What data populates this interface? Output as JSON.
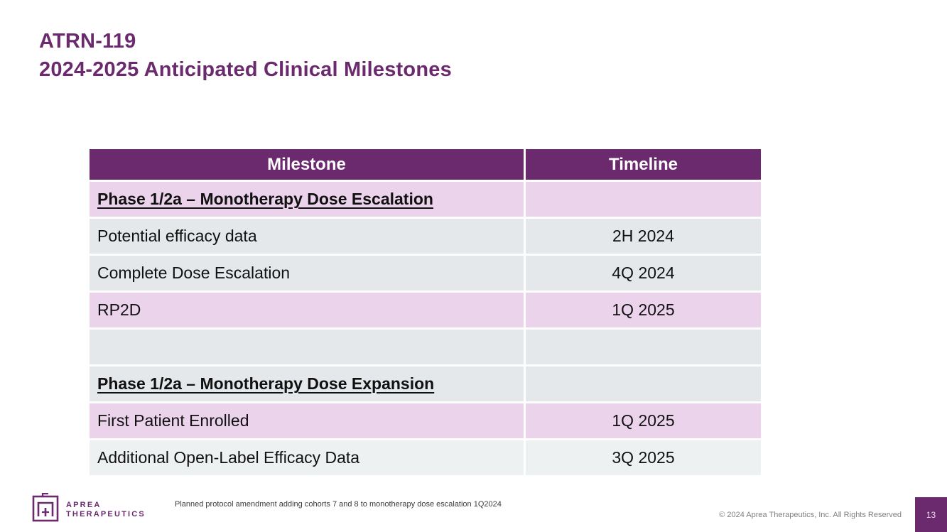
{
  "slide": {
    "title_line1": "ATRN-119",
    "title_line2": "2024-2025 Anticipated Clinical Milestones"
  },
  "table": {
    "headers": [
      "Milestone",
      "Timeline"
    ],
    "rows": [
      {
        "milestone": "Phase 1/2a – Monotherapy Dose Escalation",
        "timeline": "",
        "style": "section",
        "band": "pink"
      },
      {
        "milestone": "Potential efficacy data",
        "timeline": "2H 2024",
        "style": "normal",
        "band": "gray"
      },
      {
        "milestone": "Complete Dose Escalation",
        "timeline": "4Q 2024",
        "style": "normal",
        "band": "gray"
      },
      {
        "milestone": "RP2D",
        "timeline": "1Q 2025",
        "style": "normal",
        "band": "pink"
      },
      {
        "milestone": "",
        "timeline": "",
        "style": "normal",
        "band": "gray"
      },
      {
        "milestone": "Phase 1/2a – Monotherapy Dose Expansion",
        "timeline": "",
        "style": "section",
        "band": "gray"
      },
      {
        "milestone": "First Patient Enrolled",
        "timeline": "1Q 2025",
        "style": "normal",
        "band": "pink"
      },
      {
        "milestone": "Additional Open-Label Efficacy Data",
        "timeline": "3Q 2025",
        "style": "normal",
        "band": "lightgray"
      }
    ]
  },
  "footer": {
    "logo_line1": "APREA",
    "logo_line2": "THERAPEUTICS",
    "logo_icon": "aprea-maze-icon",
    "footnote": "Planned protocol amendment adding cohorts 7 and 8 to monotherapy dose escalation 1Q2024",
    "copyright": "© 2024 Aprea Therapeutics, Inc. All Rights Reserved",
    "page_number": "13"
  },
  "colors": {
    "brand_purple": "#6c2a6e",
    "pink_row": "#ecd3ec",
    "gray_row": "#e5e8ea",
    "light_gray_row": "#eef1f2",
    "header_text": "#ffffff",
    "body_text": "#111111",
    "footnote_text": "#3c3c3c",
    "copyright_text": "#808080"
  }
}
